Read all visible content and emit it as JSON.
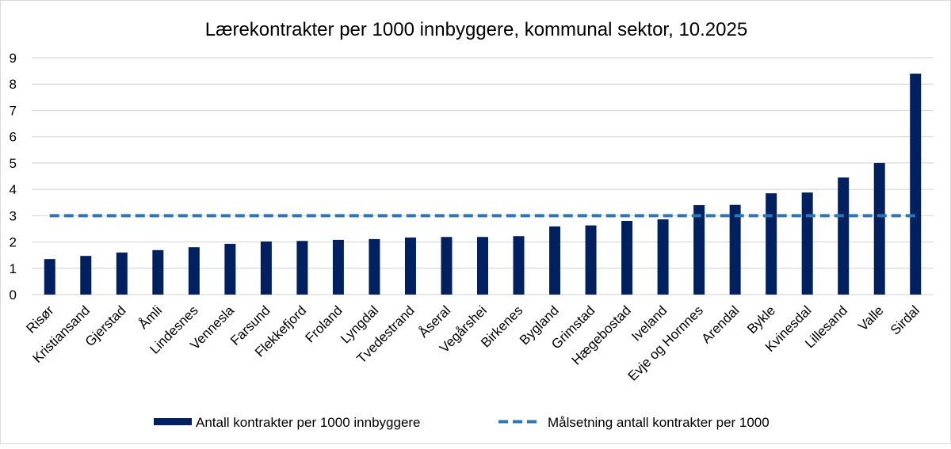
{
  "chart_data": {
    "type": "bar",
    "title": "Lærekontrakter per 1000 innbyggere, kommunal sektor, 10.2025",
    "xlabel": "",
    "ylabel": "",
    "ylim": [
      0,
      9
    ],
    "yticks": [
      "0",
      "1",
      "2",
      "3",
      "4",
      "5",
      "6",
      "7",
      "8",
      "9"
    ],
    "grid": true,
    "legend_position": "bottom",
    "categories": [
      "Risør",
      "Kristiansand",
      "Gjerstad",
      "Åmli",
      "Lindesnes",
      "Vennesla",
      "Farsund",
      "Flekkefjord",
      "Froland",
      "Lyngdal",
      "Tvedestrand",
      "Åseral",
      "Vegårshei",
      "Birkenes",
      "Bygland",
      "Grimstad",
      "Hægebostad",
      "Iveland",
      "Evje og Hornnes",
      "Arendal",
      "Bykle",
      "Kvinesdal",
      "Lillesand",
      "Valle",
      "Sirdal"
    ],
    "series": [
      {
        "name": "Antall kontrakter per 1000 innbyggere",
        "type": "bar",
        "color": "#002060",
        "values": [
          1.35,
          1.47,
          1.6,
          1.69,
          1.8,
          1.93,
          2.02,
          2.04,
          2.08,
          2.11,
          2.17,
          2.19,
          2.19,
          2.22,
          2.59,
          2.63,
          2.8,
          2.86,
          3.4,
          3.41,
          3.85,
          3.88,
          4.45,
          5.0,
          8.4
        ]
      },
      {
        "name": "Målsetning antall kontrakter per 1000",
        "type": "line",
        "style": "dashed",
        "color": "#2E75B6",
        "values": [
          3,
          3,
          3,
          3,
          3,
          3,
          3,
          3,
          3,
          3,
          3,
          3,
          3,
          3,
          3,
          3,
          3,
          3,
          3,
          3,
          3,
          3,
          3,
          3,
          3
        ]
      }
    ]
  }
}
